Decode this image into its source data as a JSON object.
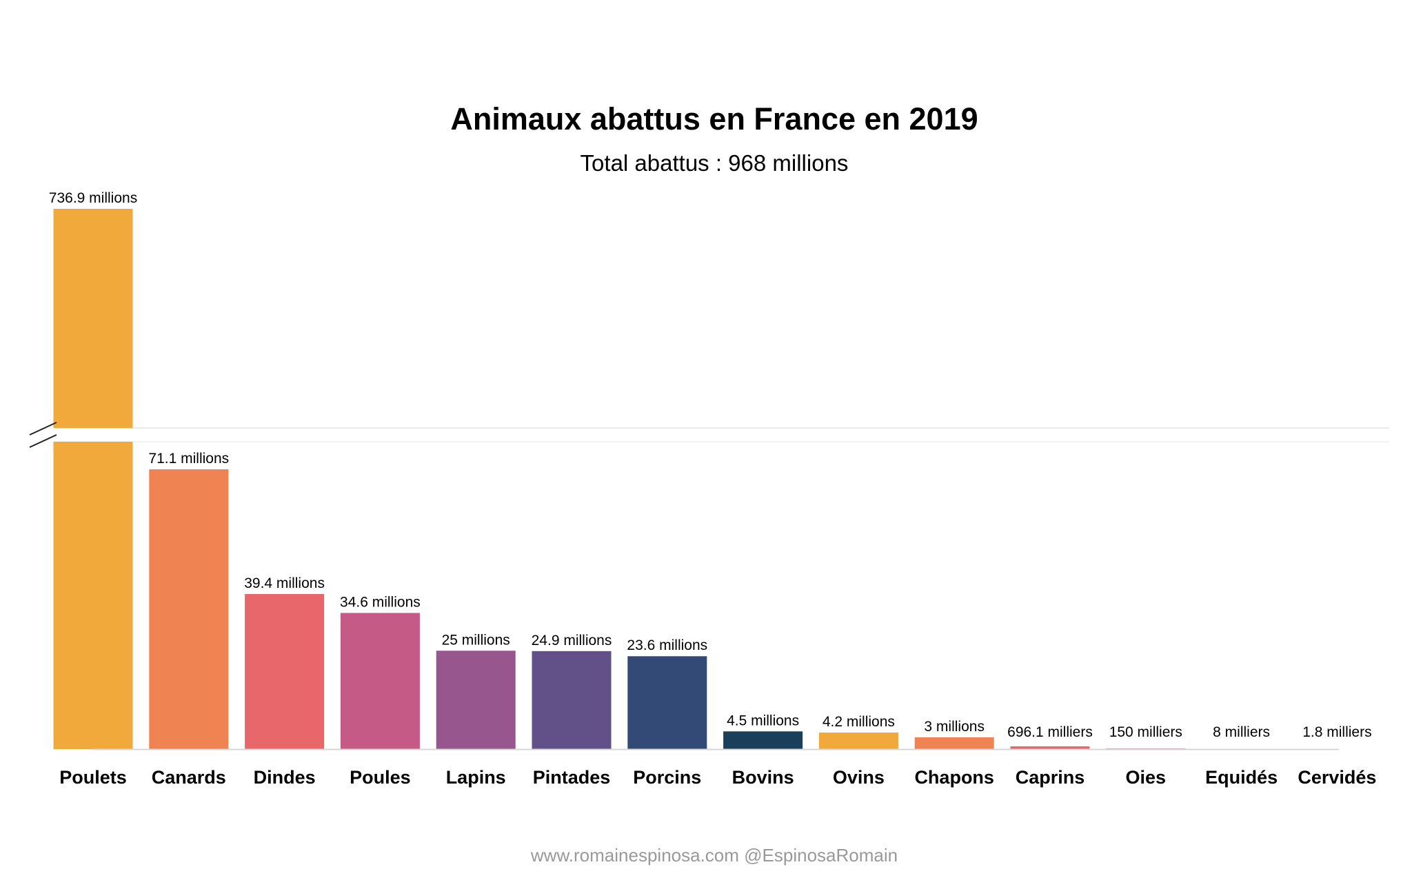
{
  "chart_data": {
    "type": "bar",
    "title": "Animaux abattus en France en 2019",
    "subtitle": "Total abattus : 968 millions",
    "footer": "www.romainespinosa.com @EspinosaRomain",
    "axis_break": true,
    "categories": [
      "Poulets",
      "Canards",
      "Dindes",
      "Poules",
      "Lapins",
      "Pintades",
      "Porcins",
      "Bovins",
      "Ovins",
      "Chapons",
      "Caprins",
      "Oies",
      "Equidés",
      "Cervidés"
    ],
    "values_millions": [
      736.9,
      71.1,
      39.4,
      34.6,
      25,
      24.9,
      23.6,
      4.5,
      4.2,
      3,
      0.6961,
      0.15,
      0.008,
      0.0018
    ],
    "labels": [
      "736.9 millions",
      "71.1 millions",
      "39.4 millions",
      "34.6 millions",
      "25 millions",
      "24.9 millions",
      "23.6 millions",
      "4.5 millions",
      "4.2 millions",
      "3 millions",
      "696.1 milliers",
      "150 milliers",
      "8 milliers",
      "1.8 milliers"
    ],
    "colors": [
      "#F2A93B",
      "#EF8352",
      "#E8676B",
      "#C55A86",
      "#98568F",
      "#625189",
      "#344A76",
      "#193F5A",
      "#F2A93B",
      "#EF8352",
      "#E8676B",
      "#C55A86",
      "#98568F",
      "#625189"
    ]
  }
}
